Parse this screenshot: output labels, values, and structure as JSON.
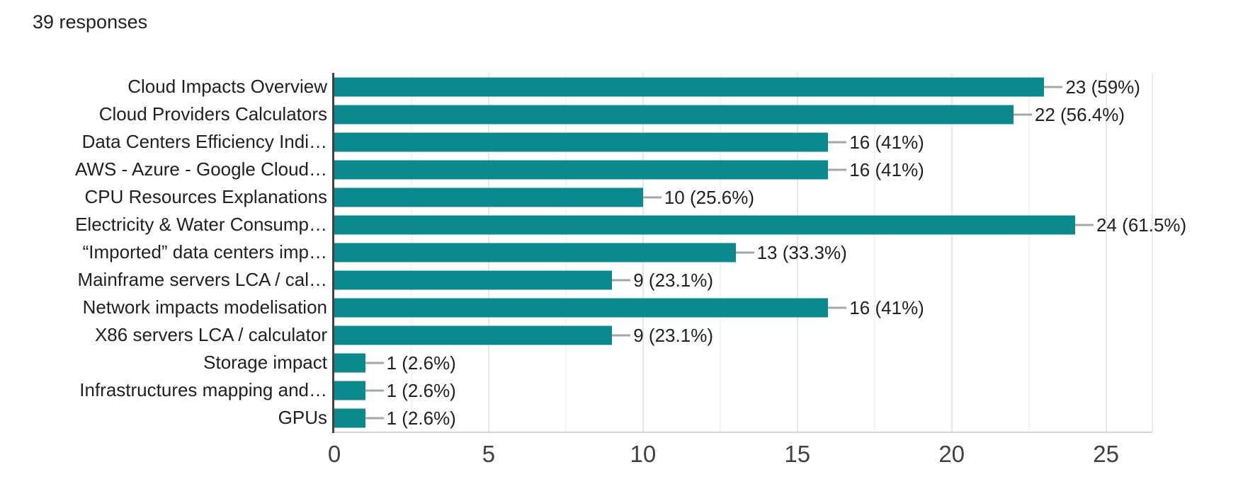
{
  "header": {
    "responses_count": "39 responses"
  },
  "chart_data": {
    "type": "bar",
    "orientation": "horizontal",
    "title": "39 responses",
    "categories": [
      "Cloud Impacts Overview",
      "Cloud Providers Calculators",
      "Data Centers Efficiency Indi…",
      "AWS - Azure - Google Cloud…",
      "CPU Resources Explanations",
      "Electricity & Water Consump…",
      "“Imported” data centers imp…",
      "Mainframe servers LCA / cal…",
      "Network impacts modelisation",
      "X86 servers LCA / calculator",
      "Storage impact",
      "Infrastructures mapping and…",
      "GPUs"
    ],
    "values": [
      23,
      22,
      16,
      16,
      10,
      24,
      13,
      9,
      16,
      9,
      1,
      1,
      1
    ],
    "value_labels": [
      "23 (59%)",
      "22 (56.4%)",
      "16 (41%)",
      "16 (41%)",
      "10 (25.6%)",
      "24 (61.5%)",
      "13 (33.3%)",
      "9 (23.1%)",
      "16 (41%)",
      "9 (23.1%)",
      "1 (2.6%)",
      "1 (2.6%)",
      "1 (2.6%)"
    ],
    "x_ticks": [
      0,
      5,
      10,
      15,
      20,
      25
    ],
    "xlim": [
      0,
      26.5
    ],
    "grid": true,
    "legend": "none",
    "bar_color": "#0c898c",
    "axis_line_color": "#424242",
    "connector_color": "#a6a6a6",
    "text_color": "#212121",
    "tick_color": "#404040"
  }
}
